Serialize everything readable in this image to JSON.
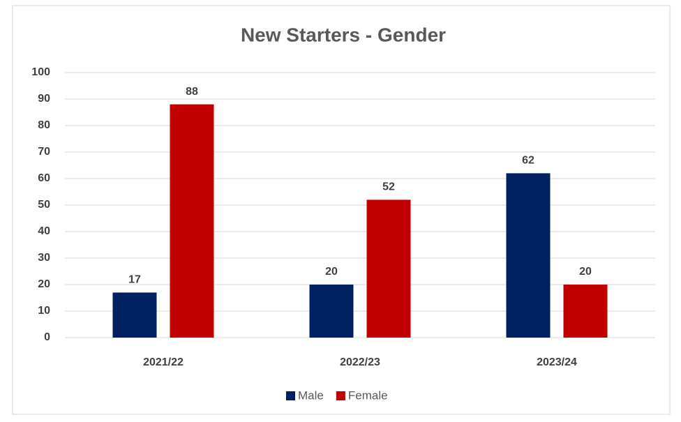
{
  "chart_data": {
    "type": "bar",
    "title": "New Starters - Gender",
    "categories": [
      "2021/22",
      "2022/23",
      "2023/24"
    ],
    "series": [
      {
        "name": "Male",
        "color": "#002060",
        "values": [
          17,
          20,
          62
        ]
      },
      {
        "name": "Female",
        "color": "#C00000",
        "values": [
          88,
          52,
          20
        ]
      }
    ],
    "ylim": [
      0,
      100
    ],
    "yticks": [
      0,
      10,
      20,
      30,
      40,
      50,
      60,
      70,
      80,
      90,
      100
    ],
    "grid": true,
    "legend": "bottom"
  }
}
